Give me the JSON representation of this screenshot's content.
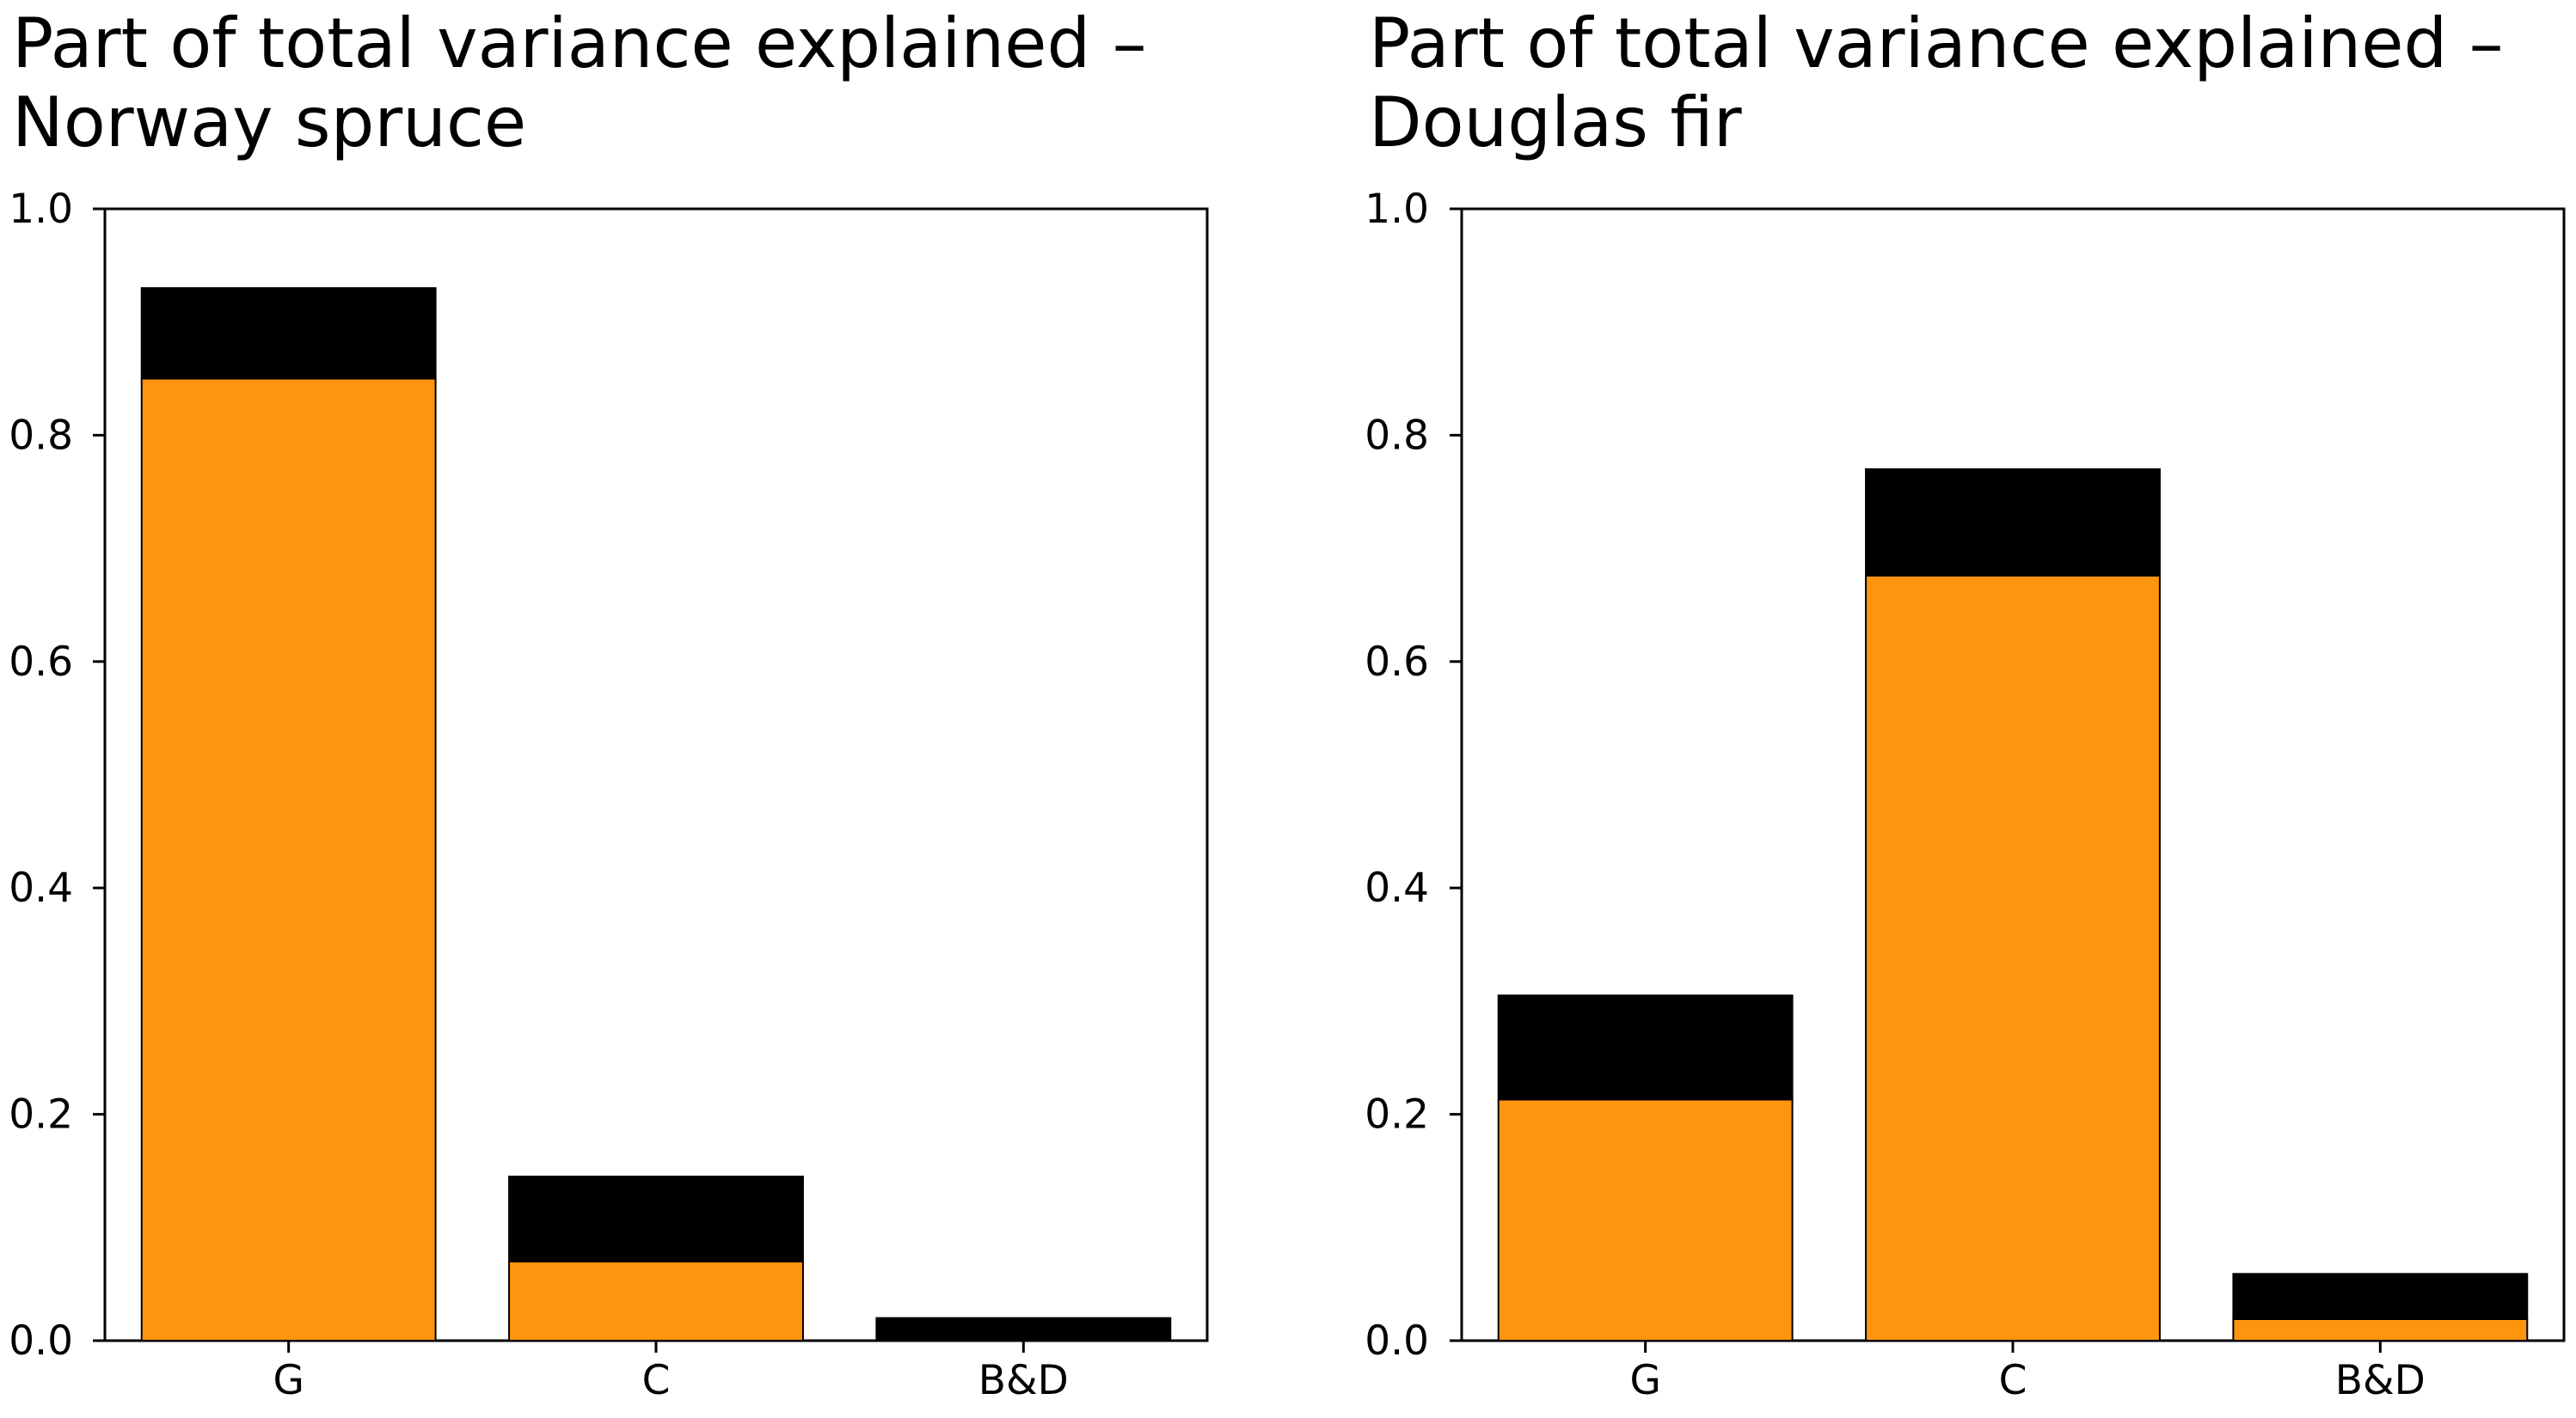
{
  "chart_data": [
    {
      "type": "bar",
      "stacked": true,
      "title_lines": [
        "Part of total variance explained –",
        "Norway spruce"
      ],
      "xlabel": "",
      "ylabel": "",
      "categories": [
        "G",
        "C",
        "B&D"
      ],
      "ylim": [
        0,
        1.0
      ],
      "yticks": [
        "0.0",
        "0.2",
        "0.4",
        "0.6",
        "0.8",
        "1.0"
      ],
      "grid": false,
      "legend": "none",
      "series": [
        {
          "color": "#FF950E",
          "values": [
            0.85,
            0.07,
            0.0
          ]
        },
        {
          "color": "#000000",
          "values": [
            0.08,
            0.075,
            0.02
          ]
        }
      ]
    },
    {
      "type": "bar",
      "stacked": true,
      "title_lines": [
        "Part of total variance explained –",
        "Douglas fir"
      ],
      "xlabel": "",
      "ylabel": "",
      "categories": [
        "G",
        "C",
        "B&D"
      ],
      "ylim": [
        0,
        1.0
      ],
      "yticks": [
        "0.0",
        "0.2",
        "0.4",
        "0.6",
        "0.8",
        "1.0"
      ],
      "grid": false,
      "legend": "none",
      "series": [
        {
          "color": "#FF950E",
          "values": [
            0.213,
            0.676,
            0.019
          ]
        },
        {
          "color": "#000000",
          "values": [
            0.092,
            0.094,
            0.04
          ]
        }
      ]
    }
  ]
}
